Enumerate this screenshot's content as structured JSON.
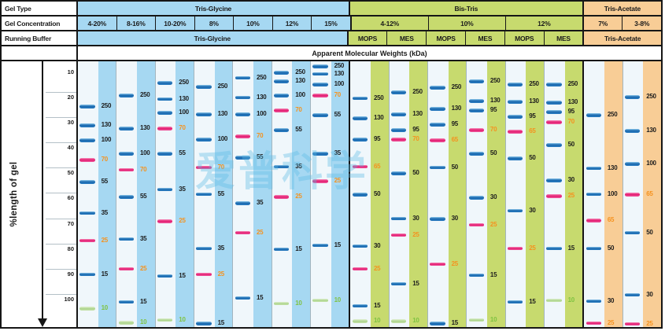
{
  "figure": {
    "row_labels": [
      "Gel Type",
      "Gel Concentration",
      "Running Buffer"
    ],
    "mw_header": "Apparent Molecular Weights (kDa)",
    "watermark": "爱普科学"
  },
  "axis": {
    "label": "%length of gel",
    "ticks": [
      10,
      20,
      30,
      40,
      50,
      60,
      70,
      80,
      90,
      100
    ]
  },
  "sections": [
    {
      "id": "tris-glycine",
      "gel_type": "Tris-Glycine",
      "color": "#a6d8f2",
      "concentrations": [
        {
          "label": "4-20%",
          "span": 1
        },
        {
          "label": "8-16%",
          "span": 1
        },
        {
          "label": "10-20%",
          "span": 1
        },
        {
          "label": "8%",
          "span": 1
        },
        {
          "label": "10%",
          "span": 1
        },
        {
          "label": "12%",
          "span": 1
        },
        {
          "label": "15%",
          "span": 1
        }
      ],
      "buffers": [
        {
          "label": "Tris-Glycine",
          "span": 7
        }
      ]
    },
    {
      "id": "bis-tris",
      "gel_type": "Bis-Tris",
      "color": "#c7da6e",
      "concentrations": [
        {
          "label": "4-12%",
          "span": 2
        },
        {
          "label": "10%",
          "span": 2
        },
        {
          "label": "12%",
          "span": 2
        }
      ],
      "buffers": [
        {
          "label": "MOPS",
          "span": 1
        },
        {
          "label": "MES",
          "span": 1
        },
        {
          "label": "MOPS",
          "span": 1
        },
        {
          "label": "MES",
          "span": 1
        },
        {
          "label": "MOPS",
          "span": 1
        },
        {
          "label": "MES",
          "span": 1
        }
      ]
    },
    {
      "id": "tris-acetate",
      "gel_type": "Tris-Acetate",
      "color": "#f8cd96",
      "concentrations": [
        {
          "label": "7%",
          "span": 1
        },
        {
          "label": "3-8%",
          "span": 1
        }
      ],
      "buffers": [
        {
          "label": "Tris-Acetate",
          "span": 2
        }
      ]
    }
  ],
  "colors": {
    "tris_glycine_fill": "#a6d8f2",
    "bis_tris_fill": "#c7da6e",
    "tris_acetate_fill": "#f8cd96",
    "band_blue": "#1a69af",
    "band_pink": "#e2186e",
    "band_green": "#abd48b",
    "label_black": "#1c1c1c",
    "label_orange": "#f5921e",
    "label_green": "#7fc241",
    "watermark_blue": "#5cbae5",
    "border_black": "#161616"
  },
  "chart_data": {
    "type": "gel-band-position-chart",
    "title": "Apparent Molecular Weights (kDa)",
    "ylabel": "%length of gel",
    "y_axis": {
      "unit": "% length of gel",
      "range": [
        0,
        100
      ],
      "direction": "down",
      "ticks": [
        10,
        20,
        30,
        40,
        50,
        60,
        70,
        80,
        90,
        100
      ]
    },
    "band_color_key": {
      "b": "blue",
      "p": "pink",
      "g": "green"
    },
    "pos_note": "pos = band position as % of gel length from top",
    "lanes": [
      {
        "section": 0,
        "gel_type": "Tris-Glycine",
        "concentration": "4-20%",
        "buffer": "Tris-Glycine",
        "bands": [
          {
            "kda": 250,
            "pos": 16.9,
            "c": "b"
          },
          {
            "kda": 130,
            "pos": 24.0,
            "c": "b"
          },
          {
            "kda": 100,
            "pos": 29.7,
            "c": "b"
          },
          {
            "kda": 70,
            "pos": 37.1,
            "c": "p"
          },
          {
            "kda": 55,
            "pos": 45.4,
            "c": "b"
          },
          {
            "kda": 35,
            "pos": 57.0,
            "c": "b"
          },
          {
            "kda": 25,
            "pos": 67.4,
            "c": "p"
          },
          {
            "kda": 15,
            "pos": 80.1,
            "c": "b"
          },
          {
            "kda": 10,
            "pos": 92.9,
            "c": "g"
          }
        ]
      },
      {
        "section": 0,
        "gel_type": "Tris-Glycine",
        "concentration": "8-16%",
        "buffer": "Tris-Glycine",
        "bands": [
          {
            "kda": 250,
            "pos": 12.8,
            "c": "b"
          },
          {
            "kda": 130,
            "pos": 25.2,
            "c": "b"
          },
          {
            "kda": 100,
            "pos": 34.7,
            "c": "b"
          },
          {
            "kda": 70,
            "pos": 40.7,
            "c": "p"
          },
          {
            "kda": 55,
            "pos": 51.0,
            "c": "b"
          },
          {
            "kda": 35,
            "pos": 66.8,
            "c": "b"
          },
          {
            "kda": 25,
            "pos": 78.0,
            "c": "p"
          },
          {
            "kda": 15,
            "pos": 90.5,
            "c": "b"
          },
          {
            "kda": 10,
            "pos": 98.3,
            "c": "g"
          }
        ]
      },
      {
        "section": 0,
        "gel_type": "Tris-Glycine",
        "concentration": "10-20%",
        "buffer": "Tris-Glycine",
        "bands": [
          {
            "kda": 250,
            "pos": 8.0,
            "c": "b"
          },
          {
            "kda": 130,
            "pos": 14.2,
            "c": "b"
          },
          {
            "kda": 100,
            "pos": 19.3,
            "c": "b"
          },
          {
            "kda": 70,
            "pos": 25.2,
            "c": "p"
          },
          {
            "kda": 55,
            "pos": 34.7,
            "c": "b"
          },
          {
            "kda": 35,
            "pos": 48.1,
            "c": "b"
          },
          {
            "kda": 25,
            "pos": 60.2,
            "c": "p"
          },
          {
            "kda": 15,
            "pos": 80.7,
            "c": "b"
          },
          {
            "kda": 10,
            "pos": 97.3,
            "c": "g"
          }
        ]
      },
      {
        "section": 0,
        "gel_type": "Tris-Glycine",
        "concentration": "8%",
        "buffer": "Tris-Glycine",
        "bands": [
          {
            "kda": 250,
            "pos": 9.5,
            "c": "b"
          },
          {
            "kda": 130,
            "pos": 19.9,
            "c": "b"
          },
          {
            "kda": 100,
            "pos": 29.4,
            "c": "b"
          },
          {
            "kda": 70,
            "pos": 39.8,
            "c": "p"
          },
          {
            "kda": 55,
            "pos": 49.9,
            "c": "b"
          },
          {
            "kda": 35,
            "pos": 70.3,
            "c": "b"
          },
          {
            "kda": 25,
            "pos": 80.1,
            "c": "p"
          },
          {
            "kda": 15,
            "pos": 98.6,
            "c": "b"
          }
        ]
      },
      {
        "section": 0,
        "gel_type": "Tris-Glycine",
        "concentration": "10%",
        "buffer": "Tris-Glycine",
        "bands": [
          {
            "kda": 250,
            "pos": 6.2,
            "c": "b"
          },
          {
            "kda": 130,
            "pos": 13.6,
            "c": "b"
          },
          {
            "kda": 100,
            "pos": 19.9,
            "c": "b"
          },
          {
            "kda": 70,
            "pos": 28.2,
            "c": "p"
          },
          {
            "kda": 55,
            "pos": 36.2,
            "c": "b"
          },
          {
            "kda": 35,
            "pos": 53.4,
            "c": "b"
          },
          {
            "kda": 25,
            "pos": 64.4,
            "c": "p"
          },
          {
            "kda": 15,
            "pos": 89.0,
            "c": "b"
          }
        ]
      },
      {
        "section": 0,
        "gel_type": "Tris-Glycine",
        "concentration": "12%",
        "buffer": "Tris-Glycine",
        "bands": [
          {
            "kda": 250,
            "pos": 4.2,
            "c": "b"
          },
          {
            "kda": 130,
            "pos": 7.4,
            "c": "b"
          },
          {
            "kda": 100,
            "pos": 12.8,
            "c": "b"
          },
          {
            "kda": 70,
            "pos": 18.4,
            "c": "p"
          },
          {
            "kda": 55,
            "pos": 25.8,
            "c": "b"
          },
          {
            "kda": 35,
            "pos": 39.5,
            "c": "b"
          },
          {
            "kda": 25,
            "pos": 51.0,
            "c": "p"
          },
          {
            "kda": 15,
            "pos": 70.6,
            "c": "b"
          },
          {
            "kda": 10,
            "pos": 91.1,
            "c": "g"
          }
        ]
      },
      {
        "section": 0,
        "gel_type": "Tris-Glycine",
        "concentration": "15%",
        "buffer": "Tris-Glycine",
        "bands": [
          {
            "kda": 250,
            "pos": 1.8,
            "c": "b"
          },
          {
            "kda": 130,
            "pos": 4.7,
            "c": "b"
          },
          {
            "kda": 100,
            "pos": 8.6,
            "c": "b"
          },
          {
            "kda": 70,
            "pos": 12.8,
            "c": "p"
          },
          {
            "kda": 55,
            "pos": 20.2,
            "c": "b"
          },
          {
            "kda": 35,
            "pos": 34.7,
            "c": "b"
          },
          {
            "kda": 25,
            "pos": 45.1,
            "c": "p"
          },
          {
            "kda": 15,
            "pos": 69.1,
            "c": "b"
          },
          {
            "kda": 10,
            "pos": 89.9,
            "c": "g"
          }
        ]
      },
      {
        "section": 1,
        "gel_type": "Bis-Tris",
        "concentration": "4-12%",
        "buffer": "MOPS",
        "bands": [
          {
            "kda": 250,
            "pos": 13.9,
            "c": "b"
          },
          {
            "kda": 130,
            "pos": 21.4,
            "c": "b"
          },
          {
            "kda": 95,
            "pos": 29.4,
            "c": "b"
          },
          {
            "kda": 65,
            "pos": 39.5,
            "c": "p"
          },
          {
            "kda": 50,
            "pos": 50.1,
            "c": "b"
          },
          {
            "kda": 30,
            "pos": 69.4,
            "c": "b"
          },
          {
            "kda": 25,
            "pos": 78.0,
            "c": "p"
          },
          {
            "kda": 15,
            "pos": 92.0,
            "c": "b"
          },
          {
            "kda": 10,
            "pos": 97.7,
            "c": "g"
          }
        ]
      },
      {
        "section": 1,
        "gel_type": "Bis-Tris",
        "concentration": "4-12%",
        "buffer": "MES",
        "bands": [
          {
            "kda": 250,
            "pos": 11.6,
            "c": "b"
          },
          {
            "kda": 130,
            "pos": 19.9,
            "c": "b"
          },
          {
            "kda": 95,
            "pos": 25.8,
            "c": "b"
          },
          {
            "kda": 70,
            "pos": 29.4,
            "c": "p"
          },
          {
            "kda": 50,
            "pos": 42.1,
            "c": "b"
          },
          {
            "kda": 30,
            "pos": 59.1,
            "c": "b"
          },
          {
            "kda": 25,
            "pos": 65.3,
            "c": "p"
          },
          {
            "kda": 15,
            "pos": 83.7,
            "c": "b"
          },
          {
            "kda": 10,
            "pos": 97.7,
            "c": "g"
          }
        ]
      },
      {
        "section": 1,
        "gel_type": "Bis-Tris",
        "concentration": "10%",
        "buffer": "MOPS",
        "bands": [
          {
            "kda": 250,
            "pos": 9.8,
            "c": "b"
          },
          {
            "kda": 130,
            "pos": 17.8,
            "c": "b"
          },
          {
            "kda": 95,
            "pos": 23.7,
            "c": "b"
          },
          {
            "kda": 65,
            "pos": 29.7,
            "c": "p"
          },
          {
            "kda": 50,
            "pos": 39.8,
            "c": "b"
          },
          {
            "kda": 30,
            "pos": 59.3,
            "c": "b"
          },
          {
            "kda": 25,
            "pos": 76.3,
            "c": "p"
          },
          {
            "kda": 15,
            "pos": 98.6,
            "c": "b"
          }
        ]
      },
      {
        "section": 1,
        "gel_type": "Bis-Tris",
        "concentration": "10%",
        "buffer": "MES",
        "bands": [
          {
            "kda": 250,
            "pos": 7.4,
            "c": "b"
          },
          {
            "kda": 130,
            "pos": 14.8,
            "c": "b"
          },
          {
            "kda": 95,
            "pos": 18.4,
            "c": "b"
          },
          {
            "kda": 70,
            "pos": 25.8,
            "c": "p"
          },
          {
            "kda": 50,
            "pos": 34.7,
            "c": "b"
          },
          {
            "kda": 30,
            "pos": 51.3,
            "c": "b"
          },
          {
            "kda": 25,
            "pos": 61.4,
            "c": "p"
          },
          {
            "kda": 15,
            "pos": 80.4,
            "c": "b"
          },
          {
            "kda": 10,
            "pos": 97.3,
            "c": "g"
          }
        ]
      },
      {
        "section": 1,
        "gel_type": "Bis-Tris",
        "concentration": "12%",
        "buffer": "MOPS",
        "bands": [
          {
            "kda": 250,
            "pos": 8.6,
            "c": "b"
          },
          {
            "kda": 130,
            "pos": 15.1,
            "c": "b"
          },
          {
            "kda": 95,
            "pos": 20.8,
            "c": "b"
          },
          {
            "kda": 65,
            "pos": 26.4,
            "c": "p"
          },
          {
            "kda": 50,
            "pos": 36.5,
            "c": "b"
          },
          {
            "kda": 30,
            "pos": 56.1,
            "c": "b"
          },
          {
            "kda": 25,
            "pos": 70.3,
            "c": "p"
          },
          {
            "kda": 15,
            "pos": 90.5,
            "c": "b"
          }
        ]
      },
      {
        "section": 1,
        "gel_type": "Bis-Tris",
        "concentration": "12%",
        "buffer": "MES",
        "bands": [
          {
            "kda": 250,
            "pos": 8.6,
            "c": "b"
          },
          {
            "kda": 130,
            "pos": 15.4,
            "c": "b"
          },
          {
            "kda": 95,
            "pos": 19.0,
            "c": "b"
          },
          {
            "kda": 70,
            "pos": 22.8,
            "c": "p"
          },
          {
            "kda": 50,
            "pos": 31.5,
            "c": "b"
          },
          {
            "kda": 30,
            "pos": 44.8,
            "c": "b"
          },
          {
            "kda": 25,
            "pos": 50.7,
            "c": "p"
          },
          {
            "kda": 15,
            "pos": 70.3,
            "c": "b"
          },
          {
            "kda": 10,
            "pos": 89.9,
            "c": "g"
          }
        ]
      },
      {
        "section": 2,
        "gel_type": "Tris-Acetate",
        "concentration": "7%",
        "buffer": "Tris-Acetate",
        "bands": [
          {
            "kda": 250,
            "pos": 20.2,
            "c": "b"
          },
          {
            "kda": 130,
            "pos": 40.1,
            "c": "b"
          },
          {
            "kda": 100,
            "pos": 49.9,
            "c": "b"
          },
          {
            "kda": 65,
            "pos": 59.9,
            "c": "p"
          },
          {
            "kda": 50,
            "pos": 70.3,
            "c": "b"
          },
          {
            "kda": 30,
            "pos": 90.2,
            "c": "b"
          },
          {
            "kda": 25,
            "pos": 98.4,
            "c": "p"
          }
        ]
      },
      {
        "section": 2,
        "gel_type": "Tris-Acetate",
        "concentration": "3-8%",
        "buffer": "Tris-Acetate",
        "bands": [
          {
            "kda": 250,
            "pos": 13.4,
            "c": "b"
          },
          {
            "kda": 130,
            "pos": 26.1,
            "c": "b"
          },
          {
            "kda": 100,
            "pos": 38.6,
            "c": "b"
          },
          {
            "kda": 65,
            "pos": 50.1,
            "c": "p"
          },
          {
            "kda": 50,
            "pos": 64.4,
            "c": "b"
          },
          {
            "kda": 30,
            "pos": 87.8,
            "c": "b"
          },
          {
            "kda": 25,
            "pos": 98.8,
            "c": "p"
          }
        ]
      }
    ]
  }
}
